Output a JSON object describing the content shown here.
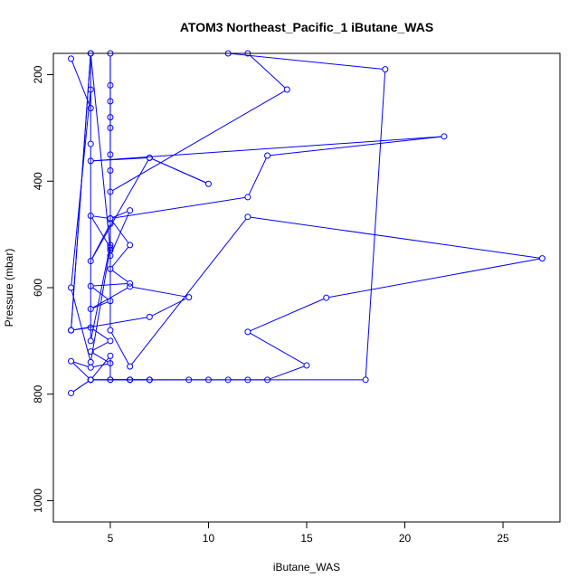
{
  "chart_data": {
    "type": "line",
    "title": "ATOM3 Northeast_Pacific_1 iButane_WAS",
    "xlabel": "iButane_WAS",
    "ylabel": "Pressure (mbar)",
    "xlim": [
      2.1,
      27.9
    ],
    "ylim": [
      1040,
      160
    ],
    "y_reversed": true,
    "x_ticks": [
      5,
      10,
      15,
      20,
      25
    ],
    "y_ticks": [
      200,
      400,
      600,
      800,
      1000
    ],
    "series": [
      {
        "color": "#0000ff",
        "marker": "open-circle",
        "x": [
          3,
          4,
          4,
          3,
          4,
          5,
          4,
          5,
          6,
          5,
          5,
          4,
          7,
          10,
          7,
          4,
          22,
          13,
          12,
          5,
          6,
          5,
          6,
          4,
          5,
          4,
          6,
          9,
          7,
          3,
          4,
          5,
          4,
          5,
          4,
          3,
          4,
          7,
          5,
          5,
          4,
          6,
          5,
          6,
          4,
          3,
          4,
          6,
          7,
          9,
          10,
          11,
          12,
          13,
          15,
          12,
          16,
          27,
          12,
          6,
          5,
          5,
          4,
          4,
          4,
          3,
          4,
          5,
          5,
          5,
          5,
          5,
          5,
          5,
          5,
          5,
          14,
          12,
          11,
          19,
          18,
          6,
          7
        ],
        "y": [
          170,
          263,
          228,
          600,
          740,
          525,
          465,
          470,
          455,
          540,
          480,
          550,
          356,
          405,
          356,
          362,
          316,
          352,
          430,
          470,
          520,
          565,
          592,
          597,
          625,
          640,
          598,
          618,
          655,
          680,
          675,
          700,
          720,
          742,
          750,
          738,
          773,
          773,
          773,
          728,
          773,
          773,
          773,
          773,
          773,
          798,
          773,
          773,
          773,
          773,
          773,
          773,
          773,
          773,
          746,
          683,
          619,
          545,
          467,
          748,
          680,
          520,
          700,
          330,
          160,
          680,
          160,
          530,
          280,
          220,
          160,
          250,
          300,
          350,
          380,
          420,
          228,
          160,
          160,
          190,
          773,
          773,
          773
        ]
      }
    ]
  }
}
